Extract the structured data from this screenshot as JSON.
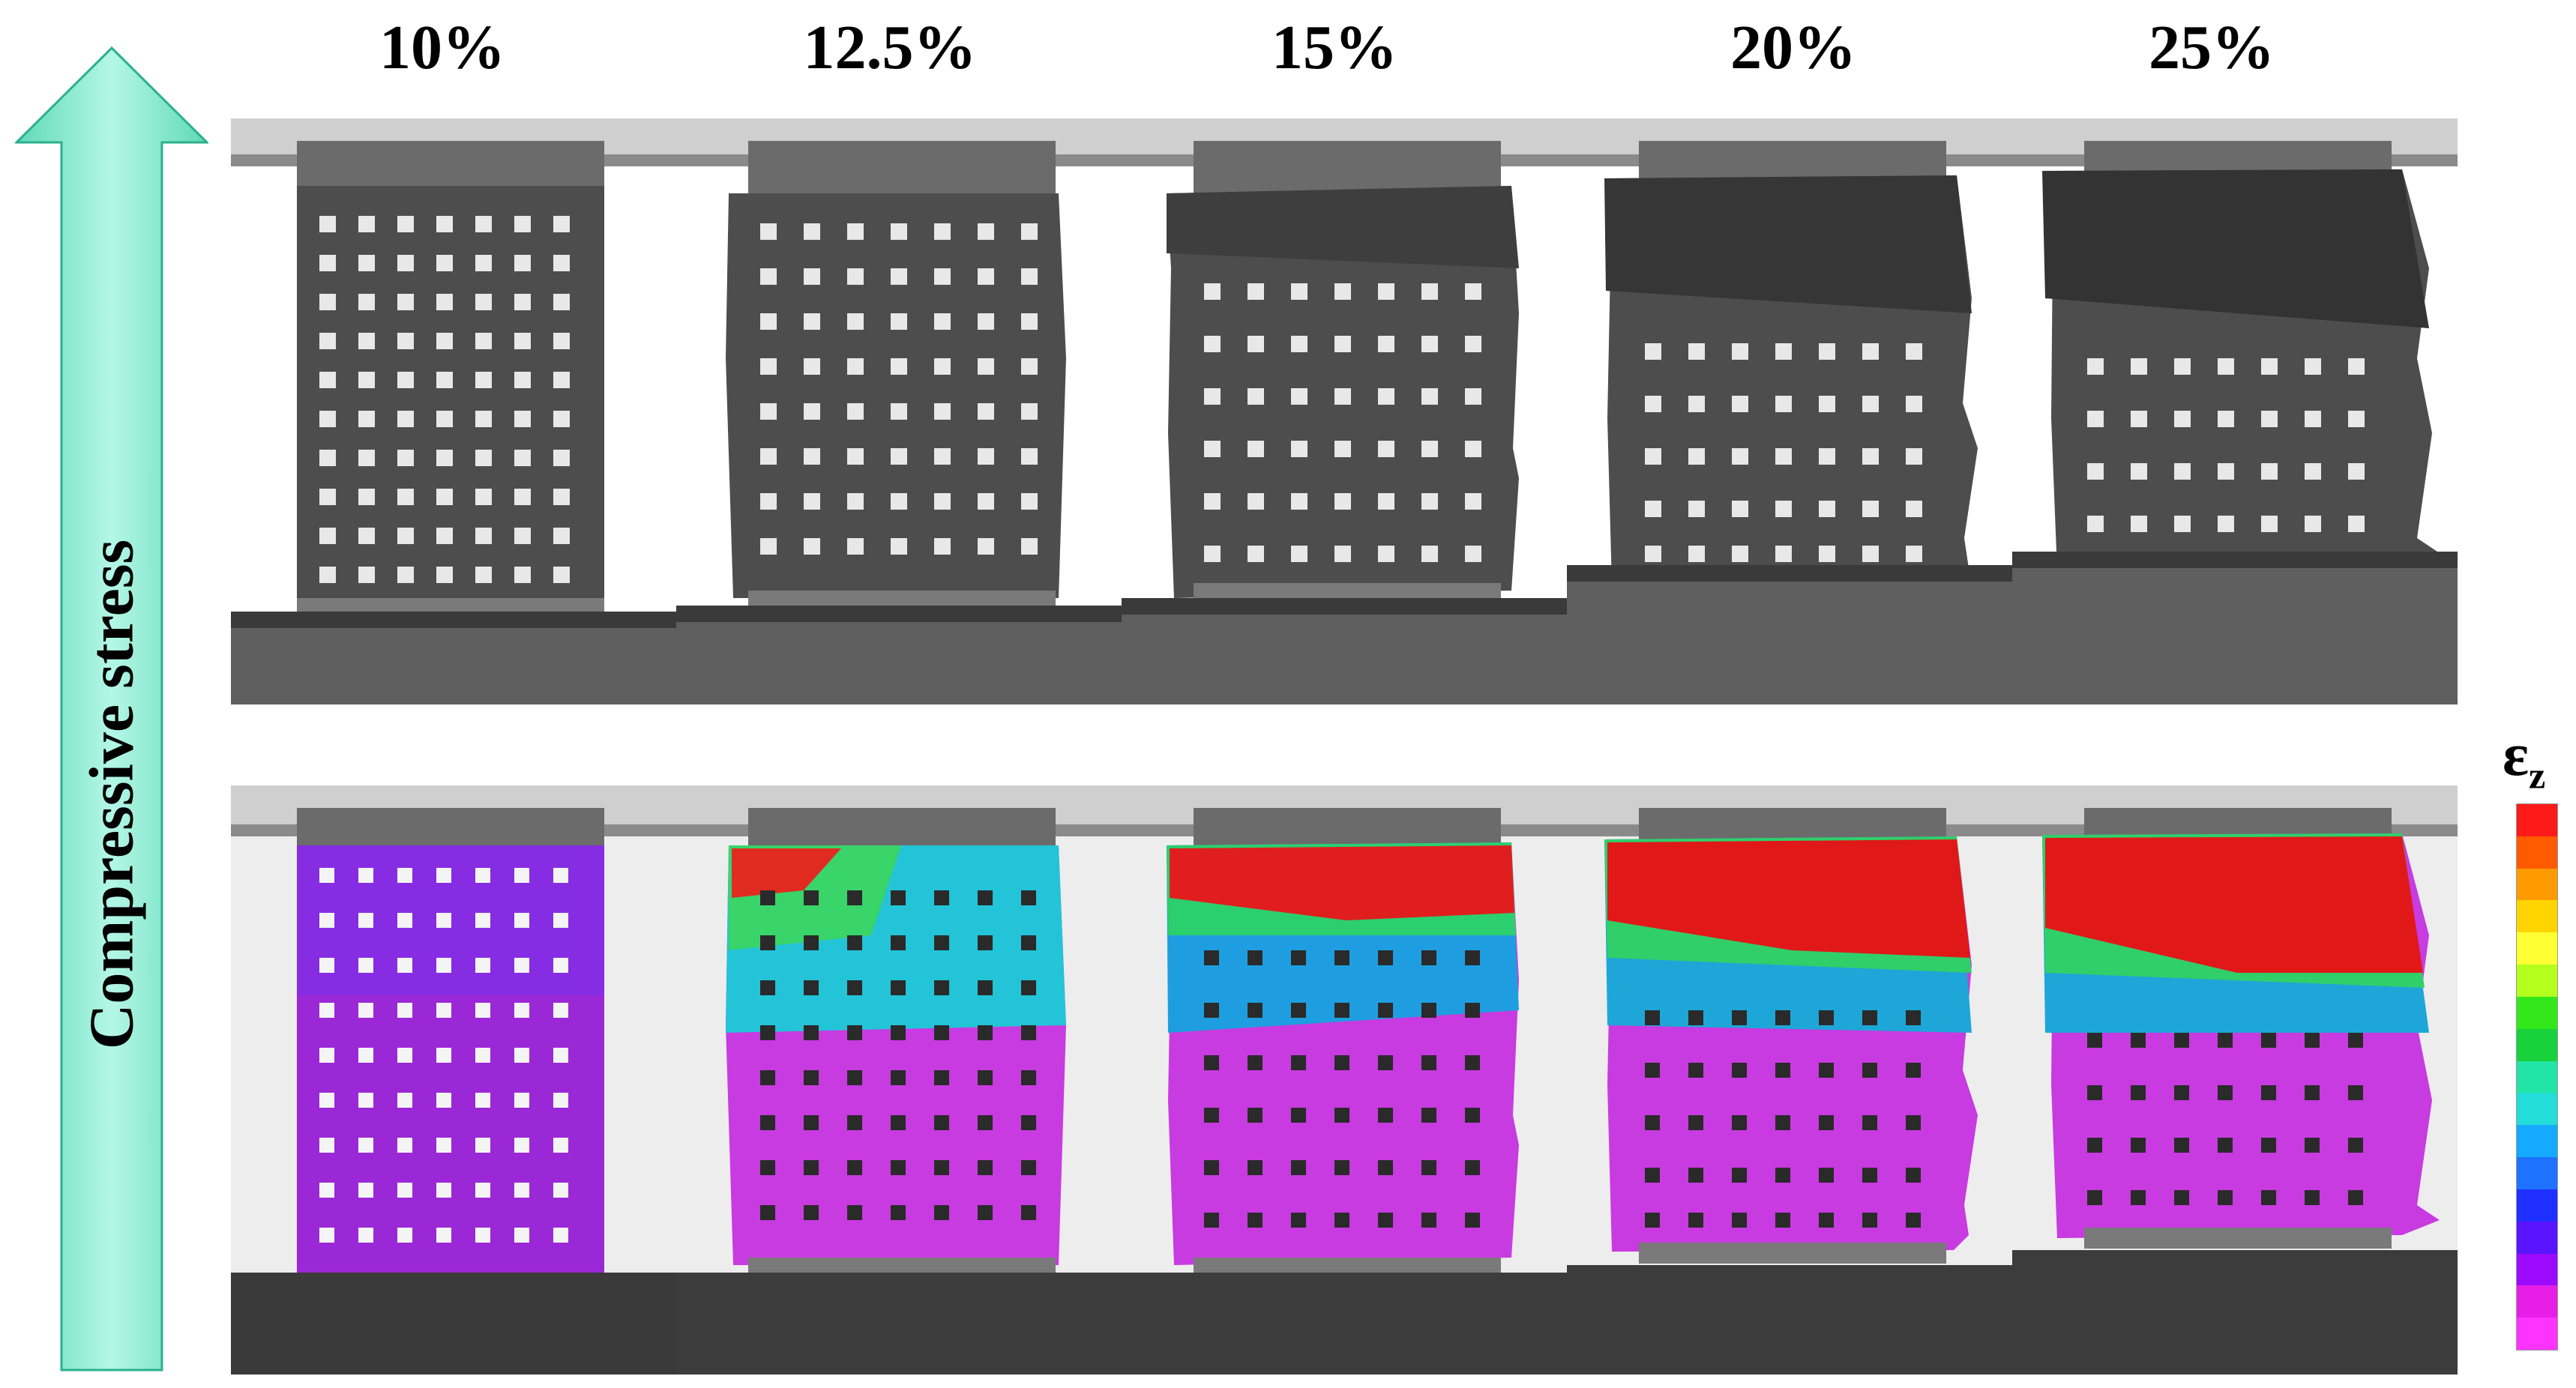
{
  "strain_levels": [
    "10%",
    "12.5%",
    "15%",
    "20%",
    "25%"
  ],
  "axis_label": "Compressive stress",
  "colorbar": {
    "symbol": "ε",
    "subscript": "z",
    "colors": [
      "#ff1a1a",
      "#ff5a00",
      "#ff9a00",
      "#ffd400",
      "#ffff33",
      "#b4ff1e",
      "#33e81a",
      "#18d23c",
      "#22e4a4",
      "#22ddd8",
      "#14aaff",
      "#1e72ff",
      "#1f2fff",
      "#5a14ff",
      "#9b0aff",
      "#e61ee6",
      "#ff33ff"
    ]
  },
  "colors": {
    "arrow_fill": "#7fe9cf",
    "arrow_edge": "#2bb08f",
    "lattice_strut": "#4b4b4b",
    "magenta_strain": "#cc2ee0",
    "red_strain": "#e01818"
  }
}
